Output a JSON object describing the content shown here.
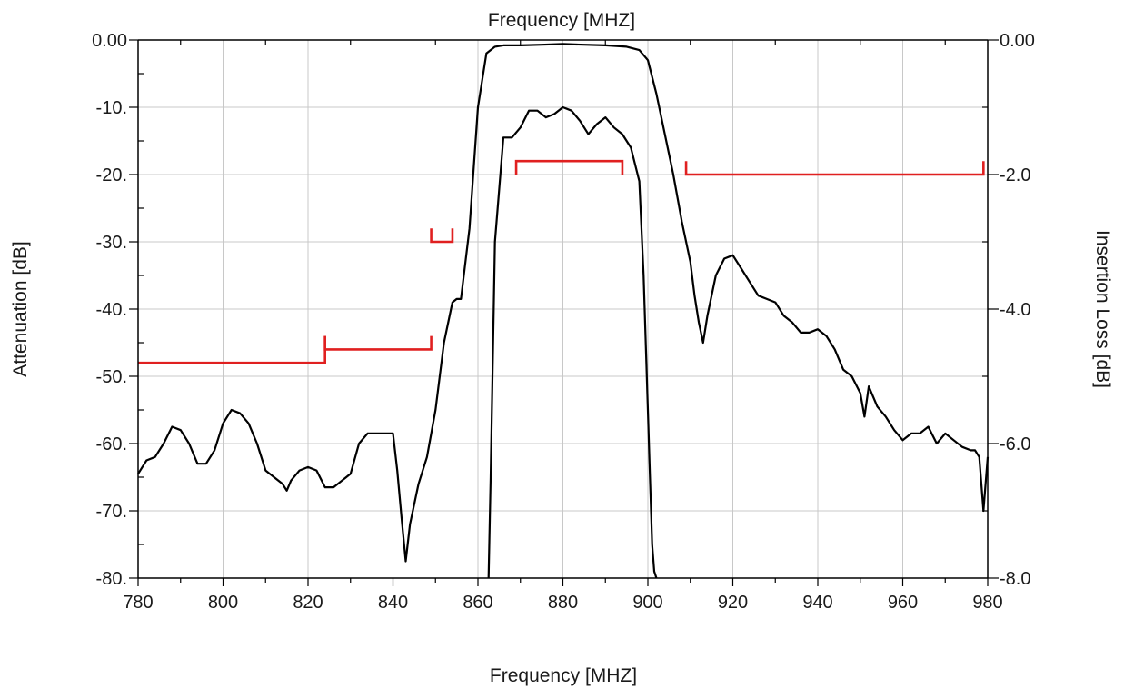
{
  "chart_data": {
    "type": "line",
    "title": "Frequency [MHZ]",
    "xlabel": "Frequency [MHZ]",
    "ylabel": "Attenuation [dB]",
    "y2label": "Insertion Loss [dB]",
    "xlim": [
      780,
      980
    ],
    "ylim": [
      -80,
      0
    ],
    "y2lim": [
      -8,
      0
    ],
    "grid": true,
    "x_ticks": [
      780,
      800,
      820,
      840,
      860,
      880,
      900,
      920,
      940,
      960,
      980
    ],
    "x_tick_labels": [
      "780",
      "800",
      "820",
      "840",
      "860",
      "880",
      "900",
      "920",
      "940",
      "960",
      "980"
    ],
    "y_ticks": [
      0,
      -10,
      -20,
      -30,
      -40,
      -50,
      -60,
      -70,
      -80
    ],
    "y_tick_labels": [
      "0.00",
      "-10.",
      "-20.",
      "-30.",
      "-40.",
      "-50.",
      "-60.",
      "-70.",
      "-80."
    ],
    "y2_ticks": [
      0,
      -2,
      -4,
      -6,
      -8
    ],
    "y2_tick_labels": [
      "0.00",
      "-2.0",
      "-4.0",
      "-6.0",
      "-8.0"
    ],
    "series": [
      {
        "axis": "left",
        "x": [
          780,
          782,
          784,
          786,
          788,
          790,
          792,
          794,
          796,
          798,
          800,
          802,
          804,
          806,
          808,
          810,
          812,
          814,
          815,
          816,
          818,
          820,
          822,
          824,
          826,
          828,
          830,
          832,
          834,
          836,
          838,
          840,
          841,
          842,
          843,
          844,
          846,
          848,
          850,
          852,
          854,
          855,
          856,
          858,
          860,
          862,
          864,
          866,
          870,
          875,
          880,
          885,
          890,
          895,
          898,
          900,
          902,
          904,
          906,
          908,
          910,
          911,
          912,
          913,
          914,
          916,
          918,
          920,
          922,
          924,
          926,
          928,
          930,
          932,
          934,
          936,
          938,
          940,
          942,
          944,
          946,
          948,
          950,
          951,
          952,
          953,
          954,
          956,
          958,
          960,
          962,
          964,
          966,
          968,
          970,
          972,
          974,
          976,
          977,
          978,
          979,
          980
        ],
        "y": [
          -64.5,
          -62.5,
          -62,
          -60,
          -57.5,
          -58,
          -60,
          -63,
          -63,
          -61,
          -57,
          -55,
          -55.5,
          -57,
          -60,
          -64,
          -65,
          -66,
          -67,
          -65.5,
          -64,
          -63.5,
          -64,
          -66.5,
          -66.5,
          -65.5,
          -64.5,
          -60,
          -58.5,
          -58.5,
          -58.5,
          -58.5,
          -64,
          -71,
          -77.5,
          -72,
          -66,
          -62,
          -55,
          -45,
          -39,
          -38.5,
          -38.5,
          -28,
          -10,
          -2,
          -1,
          -0.8,
          -0.8,
          -0.7,
          -0.6,
          -0.7,
          -0.8,
          -1,
          -1.5,
          -3,
          -8,
          -14,
          -20,
          -27,
          -33,
          -38,
          -42,
          -45,
          -41,
          -35,
          -32.5,
          -32,
          -34,
          -36,
          -38,
          -38.5,
          -39,
          -41,
          -42,
          -43.5,
          -43.5,
          -43,
          -44,
          -46,
          -49,
          -50,
          -52.5,
          -56,
          -51.5,
          -53,
          -54.5,
          -56,
          -58,
          -59.5,
          -58.5,
          -58.5,
          -57.5,
          -60,
          -58.5,
          -59.5,
          -60.5,
          -61,
          -61,
          -62,
          -70,
          -62
        ]
      },
      {
        "axis": "right",
        "x": [
          862.5,
          863,
          864,
          866,
          868,
          870,
          872,
          874,
          876,
          878,
          880,
          882,
          884,
          886,
          888,
          890,
          892,
          894,
          896,
          898,
          899,
          900,
          900.5,
          901,
          901.5,
          902
        ],
        "y": [
          -8.2,
          -6.5,
          -3,
          -1.45,
          -1.45,
          -1.3,
          -1.05,
          -1.05,
          -1.15,
          -1.1,
          -1,
          -1.05,
          -1.2,
          -1.4,
          -1.25,
          -1.15,
          -1.3,
          -1.4,
          -1.6,
          -2.1,
          -3.5,
          -5.5,
          -6.5,
          -7.5,
          -7.9,
          -8.1
        ]
      }
    ],
    "mask_segments": [
      {
        "x_start": 780,
        "x_end": 824,
        "y": -48,
        "left_tick_to": null,
        "right_tick_to": -44
      },
      {
        "x_start": 824,
        "x_end": 849,
        "y": -46,
        "left_tick_to": -44,
        "right_tick_to": -44
      },
      {
        "x_start": 849,
        "x_end": 854,
        "y": -30,
        "left_tick_to": -28,
        "right_tick_to": -28
      },
      {
        "x_start": 869,
        "x_end": 894,
        "y": -18,
        "left_tick_to": -20,
        "right_tick_to": -20
      },
      {
        "x_start": 909,
        "x_end": 979,
        "y": -20,
        "left_tick_to": -18,
        "right_tick_to": -18
      }
    ],
    "colors": {
      "series": "#000000",
      "mask": "#e02020",
      "grid": "#c8c8c8"
    }
  }
}
